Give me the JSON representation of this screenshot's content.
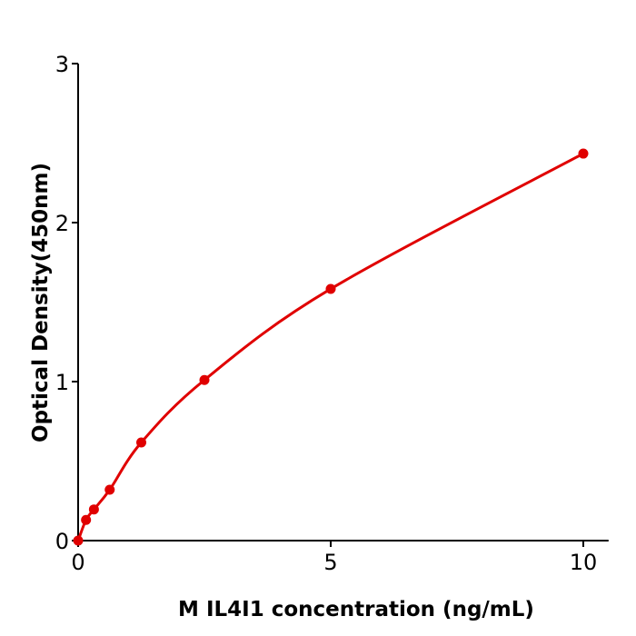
{
  "chart_data": {
    "type": "scatter",
    "title": "",
    "xlabel": "M  IL4I1 concentration (ng/mL)",
    "ylabel": "Optical Density(450nm)",
    "xlim": [
      0,
      10.5
    ],
    "ylim": [
      0,
      3
    ],
    "xticks": [
      0,
      5,
      10
    ],
    "yticks": [
      0,
      1,
      2,
      3
    ],
    "grid": false,
    "color": "#e00000",
    "points": [
      {
        "x": 0,
        "y": 0.0
      },
      {
        "x": 0.156,
        "y": 0.13
      },
      {
        "x": 0.3125,
        "y": 0.196
      },
      {
        "x": 0.625,
        "y": 0.32
      },
      {
        "x": 1.25,
        "y": 0.617
      },
      {
        "x": 2.5,
        "y": 1.01
      },
      {
        "x": 5,
        "y": 1.583
      },
      {
        "x": 10,
        "y": 2.434
      }
    ],
    "fit_curve": true
  }
}
